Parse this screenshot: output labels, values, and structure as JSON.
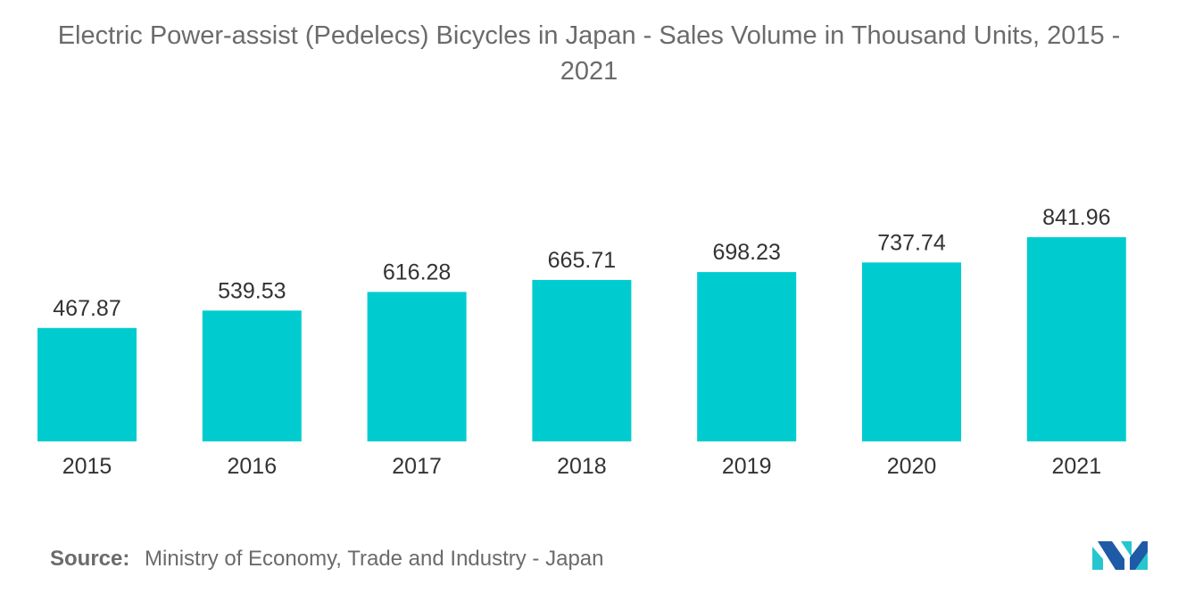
{
  "chart_data": {
    "type": "bar",
    "title": "Electric Power-assist (Pedelecs) Bicycles in Japan - Sales Volume in Thousand Units, 2015 - 2021",
    "categories": [
      "2015",
      "2016",
      "2017",
      "2018",
      "2019",
      "2020",
      "2021"
    ],
    "values": [
      467.87,
      539.53,
      616.28,
      665.71,
      698.23,
      737.74,
      841.96
    ],
    "value_labels": [
      "467.87",
      "539.53",
      "616.28",
      "665.71",
      "698.23",
      "737.74",
      "841.96"
    ],
    "xlabel": "",
    "ylabel": "",
    "grid": false,
    "legend": "none",
    "bar_color": "#00cccf"
  },
  "title_lines": [
    "Electric Power-assist (Pedelecs) Bicycles in Japan - Sales Volume in Thousand Units, 2015 -",
    "2021"
  ],
  "source": {
    "label": "Source:",
    "text": "Ministry of Economy, Trade and Industry - Japan"
  },
  "logo": {
    "icon": "mordor-intelligence-logo-icon",
    "colors": [
      "#1f5aa6",
      "#26c6d0"
    ]
  }
}
